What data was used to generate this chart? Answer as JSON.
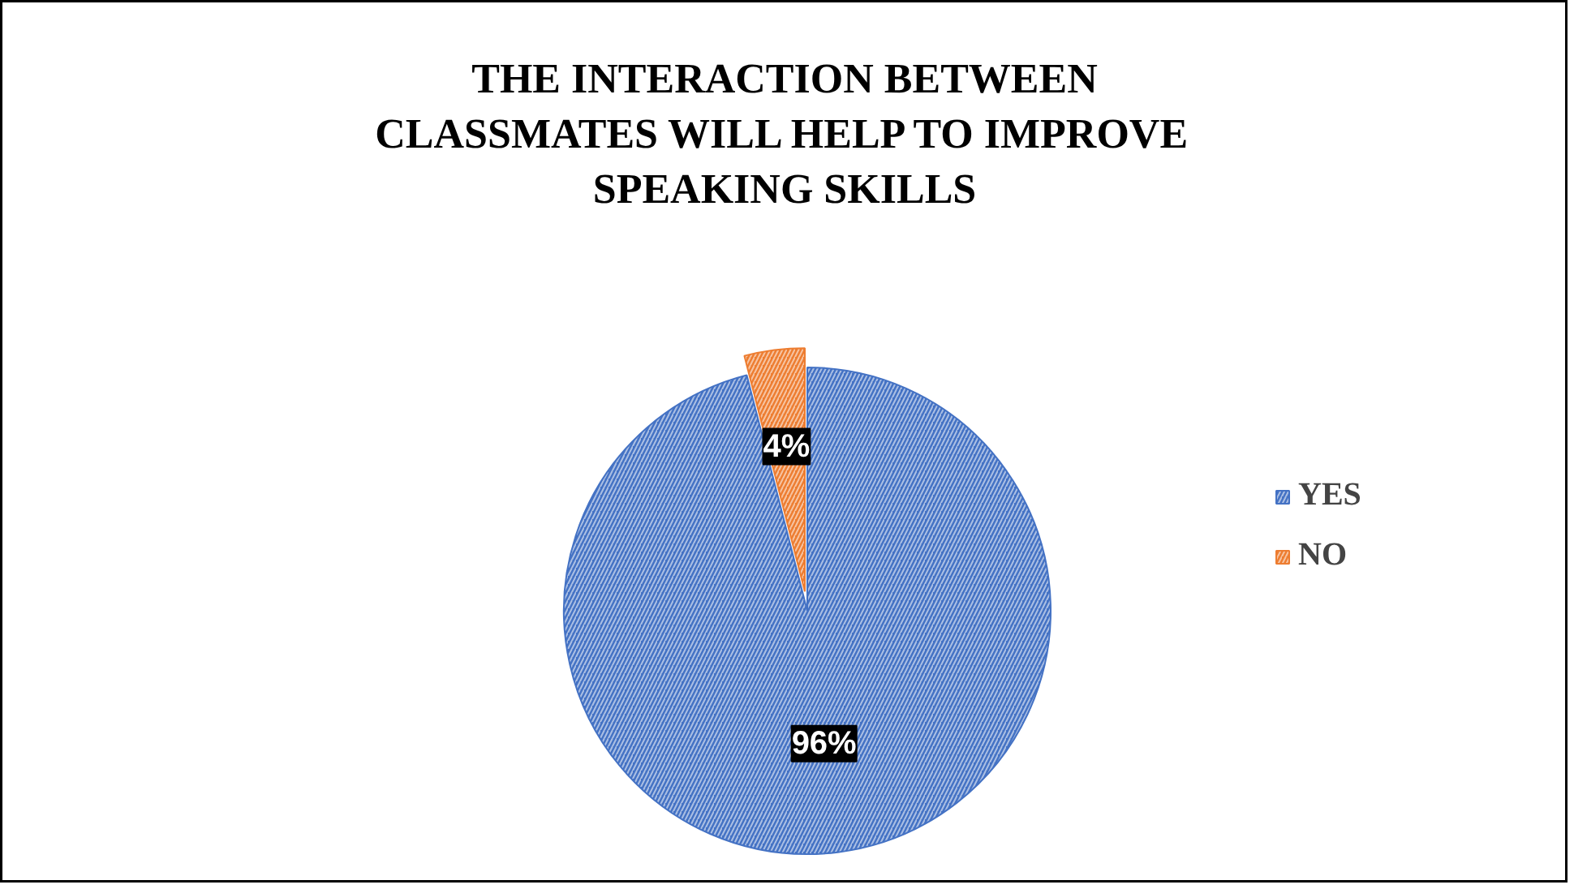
{
  "chart_data": {
    "type": "pie",
    "title": "THE INTERACTION BETWEEN CLASSMATES WILL HELP TO IMPROVE SPEAKING SKILLS",
    "categories": [
      "YES",
      "NO"
    ],
    "values": [
      96,
      4
    ],
    "colors": [
      "#4472c4",
      "#ed7d31"
    ],
    "value_labels": [
      "96%",
      "4%"
    ],
    "legend": "right"
  }
}
